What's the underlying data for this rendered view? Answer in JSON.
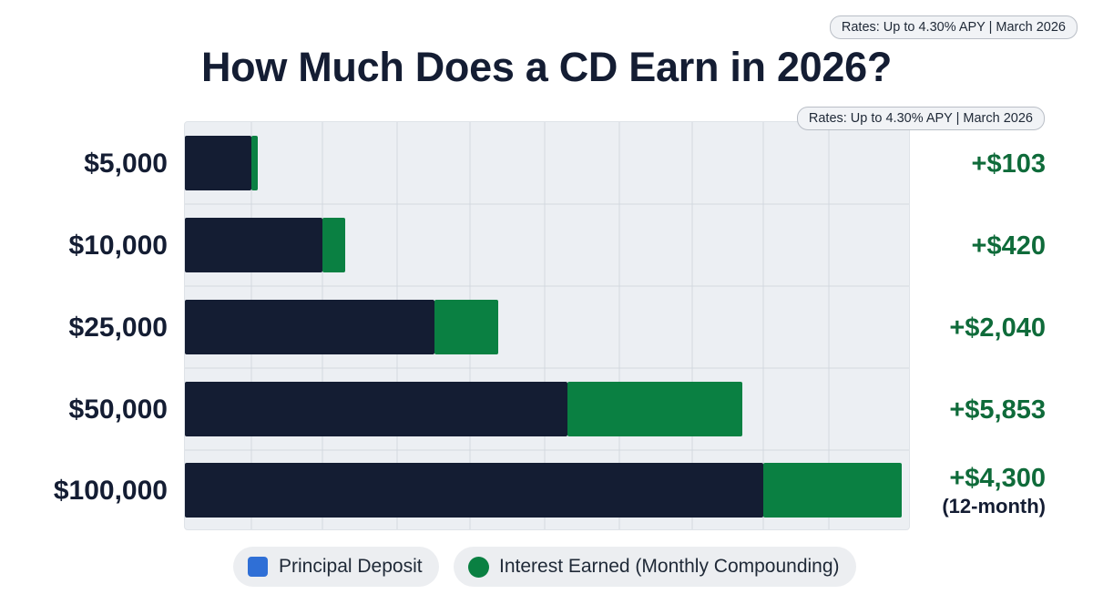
{
  "rate_badge": "Rates: Up to 4.30% APY | March 2026",
  "plot_badge": "Rates: Up to 4.30% APY | March 2026",
  "chart_data": {
    "type": "bar",
    "orientation": "horizontal",
    "stacked": true,
    "title": "How Much Does a CD Earn in 2026?",
    "categories": [
      "$5,000",
      "$10,000",
      "$25,000",
      "$50,000",
      "$100,000"
    ],
    "series": [
      {
        "name": "Principal Deposit",
        "values": [
          5000,
          10000,
          25000,
          50000,
          100000
        ],
        "color": "#141d33"
      },
      {
        "name": "Interest Earned (Monthly Compounding)",
        "values": [
          103,
          420,
          2040,
          5853,
          4300
        ],
        "color": "#0a8042"
      }
    ],
    "data_labels": [
      "+$103",
      "+$420",
      "+$2,040",
      "+$5,853",
      "+$4,300"
    ],
    "data_sublabels": [
      "",
      "",
      "",
      "",
      "(12-month)"
    ],
    "grid": true,
    "legend_position": "bottom-center",
    "colors": {
      "principal": "#141d33",
      "interest": "#0a8042",
      "legend_principal_swatch": "#2f6fd6",
      "label_green": "#0f6b3a"
    }
  },
  "legend": {
    "principal_label": "Principal Deposit",
    "interest_label": "Interest Earned (Monthly Compounding)"
  }
}
